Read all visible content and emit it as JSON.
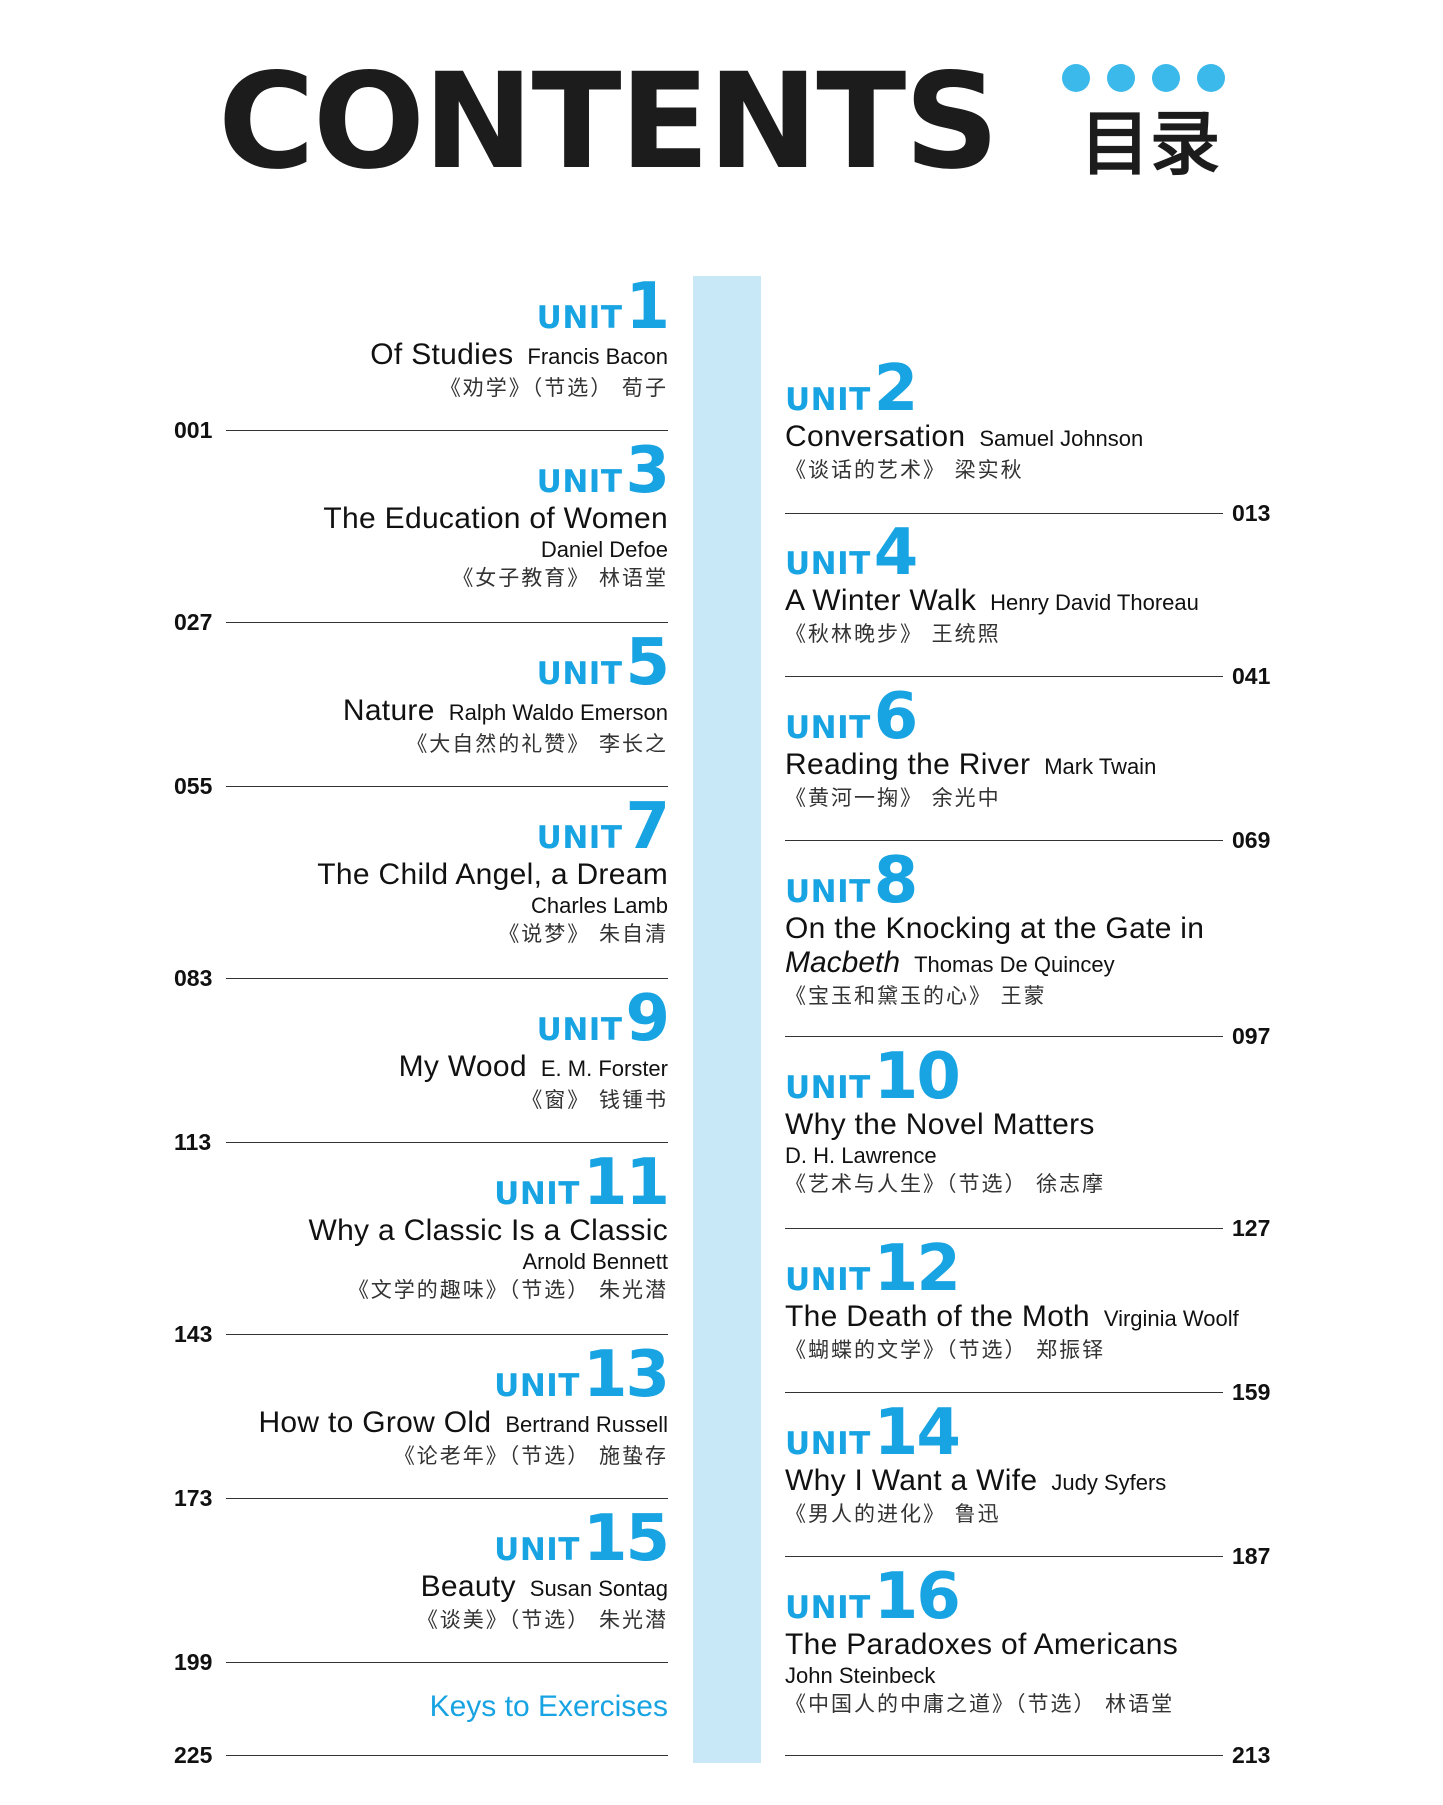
{
  "header": {
    "title": "CONTENTS",
    "title_cn": "目录",
    "accent_color": "#18a3e2",
    "dots": [
      "dot",
      "dot",
      "dot",
      "dot"
    ]
  },
  "unit_word": "UNIT",
  "units": [
    {
      "num": "1",
      "title": "Of Studies",
      "title_italic": "",
      "author": "Francis Bacon",
      "author_on_own_line": false,
      "cn": "《劝学》（节选） 荀子",
      "page": "001"
    },
    {
      "num": "2",
      "title": "Conversation",
      "title_italic": "",
      "author": "Samuel Johnson",
      "author_on_own_line": false,
      "cn": "《谈话的艺术》 梁实秋",
      "page": "013"
    },
    {
      "num": "3",
      "title": "The Education of Women",
      "title_italic": "",
      "author": "Daniel Defoe",
      "author_on_own_line": true,
      "cn": "《女子教育》 林语堂",
      "page": "027"
    },
    {
      "num": "4",
      "title": "A Winter Walk",
      "title_italic": "",
      "author": "Henry David Thoreau",
      "author_on_own_line": false,
      "cn": "《秋林晚步》 王统照",
      "page": "041"
    },
    {
      "num": "5",
      "title": "Nature",
      "title_italic": "",
      "author": "Ralph Waldo Emerson",
      "author_on_own_line": false,
      "cn": "《大自然的礼赞》 李长之",
      "page": "055"
    },
    {
      "num": "6",
      "title": "Reading the River",
      "title_italic": "",
      "author": "Mark Twain",
      "author_on_own_line": false,
      "cn": "《黄河一掬》 余光中",
      "page": "069"
    },
    {
      "num": "7",
      "title": "The Child Angel, a Dream",
      "title_italic": "",
      "author": "Charles Lamb",
      "author_on_own_line": true,
      "cn": "《说梦》 朱自清",
      "page": "083"
    },
    {
      "num": "8",
      "title": "On the Knocking at the Gate in",
      "title_italic": "Macbeth",
      "author": "Thomas De Quincey",
      "author_on_own_line": false,
      "cn": "《宝玉和黛玉的心》 王蒙",
      "page": "097"
    },
    {
      "num": "9",
      "title": "My Wood",
      "title_italic": "",
      "author": "E. M. Forster",
      "author_on_own_line": false,
      "cn": "《窗》 钱锺书",
      "page": "113"
    },
    {
      "num": "10",
      "title": "Why the Novel Matters",
      "title_italic": "",
      "author": "D. H. Lawrence",
      "author_on_own_line": true,
      "cn": "《艺术与人生》（节选） 徐志摩",
      "page": "127"
    },
    {
      "num": "11",
      "title": "Why a Classic Is a Classic",
      "title_italic": "",
      "author": "Arnold Bennett",
      "author_on_own_line": true,
      "cn": "《文学的趣味》（节选） 朱光潜",
      "page": "143"
    },
    {
      "num": "12",
      "title": "The Death of the Moth",
      "title_italic": "",
      "author": "Virginia Woolf",
      "author_on_own_line": false,
      "cn": "《蝴蝶的文学》（节选） 郑振铎",
      "page": "159"
    },
    {
      "num": "13",
      "title": "How to Grow Old",
      "title_italic": "",
      "author": "Bertrand Russell",
      "author_on_own_line": false,
      "cn": "《论老年》（节选） 施蛰存",
      "page": "173"
    },
    {
      "num": "14",
      "title": "Why I Want a Wife",
      "title_italic": "",
      "author": "Judy Syfers",
      "author_on_own_line": false,
      "cn": "《男人的进化》 鲁迅",
      "page": "187"
    },
    {
      "num": "15",
      "title": "Beauty",
      "title_italic": "",
      "author": "Susan Sontag",
      "author_on_own_line": false,
      "cn": "《谈美》（节选） 朱光潜",
      "page": "199"
    },
    {
      "num": "16",
      "title": "The Paradoxes of Americans",
      "title_italic": "",
      "author": "John Steinbeck",
      "author_on_own_line": true,
      "cn": "《中国人的中庸之道》（节选） 林语堂",
      "page": "213"
    }
  ],
  "keys": {
    "label": "Keys to Exercises",
    "page": "225"
  }
}
